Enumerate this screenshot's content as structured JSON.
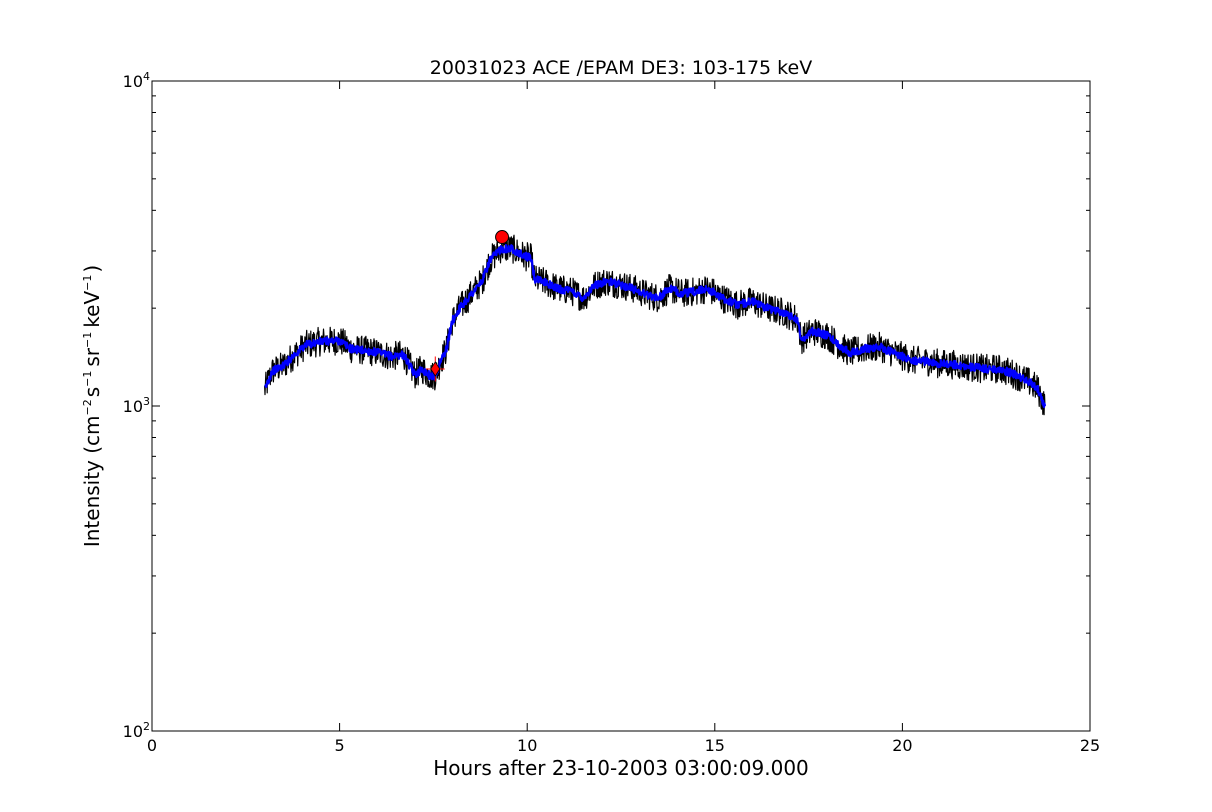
{
  "chart_data": {
    "type": "line",
    "title": "20031023 ACE /EPAM DE3: 103-175 keV",
    "xlabel": "Hours after 23-10-2003 03:00:09.000",
    "ylabel": {
      "prefix": "Intensity (cm",
      "sup1": "−2",
      "part2": "s",
      "sup2": "−1",
      "part3": "sr",
      "sup3": "−1",
      "part4": "keV",
      "sup4": "−1",
      "suffix": ")"
    },
    "xlim": [
      0,
      25
    ],
    "ylim": [
      100,
      10000
    ],
    "yscale": "log",
    "grid": false,
    "x_ticks": [
      {
        "value": 0,
        "label": "0"
      },
      {
        "value": 5,
        "label": "5"
      },
      {
        "value": 10,
        "label": "10"
      },
      {
        "value": 15,
        "label": "15"
      },
      {
        "value": 20,
        "label": "20"
      },
      {
        "value": 25,
        "label": "25"
      }
    ],
    "y_ticks": [
      {
        "value": 100,
        "base": "10",
        "exp": "2"
      },
      {
        "value": 1000,
        "base": "10",
        "exp": "3"
      },
      {
        "value": 10000,
        "base": "10",
        "exp": "4"
      }
    ],
    "series": [
      {
        "color": "#000000",
        "x": [
          3.0,
          3.2,
          3.5,
          3.8,
          4.1,
          4.5,
          5.0,
          5.3,
          5.7,
          6.0,
          6.4,
          6.7,
          7.0,
          7.2,
          7.4,
          7.55,
          7.7,
          7.85,
          8.0,
          8.2,
          8.5,
          8.8,
          9.0,
          9.3,
          9.6,
          9.9,
          10.1,
          10.2,
          10.5,
          10.8,
          11.2,
          11.5,
          11.8,
          12.1,
          12.5,
          12.8,
          13.2,
          13.5,
          13.8,
          14.1,
          14.5,
          14.8,
          15.2,
          15.6,
          16.0,
          16.4,
          16.8,
          17.2,
          17.3,
          17.6,
          18.0,
          18.3,
          18.6,
          19.0,
          19.4,
          19.8,
          20.0,
          20.3,
          20.7,
          21.0,
          21.4,
          21.8,
          22.2,
          22.6,
          23.0,
          23.4,
          23.6,
          23.8
        ],
        "y": [
          1120,
          1280,
          1330,
          1440,
          1540,
          1580,
          1590,
          1500,
          1480,
          1460,
          1420,
          1440,
          1250,
          1300,
          1240,
          1240,
          1380,
          1500,
          1820,
          2000,
          2200,
          2420,
          2800,
          3050,
          3050,
          2900,
          2850,
          2450,
          2400,
          2300,
          2250,
          2150,
          2350,
          2420,
          2360,
          2300,
          2200,
          2150,
          2300,
          2220,
          2250,
          2300,
          2150,
          2050,
          2100,
          2000,
          1950,
          1850,
          1600,
          1700,
          1650,
          1540,
          1460,
          1500,
          1520,
          1450,
          1420,
          1380,
          1370,
          1350,
          1340,
          1320,
          1300,
          1300,
          1250,
          1180,
          1130,
          1000
        ]
      },
      {
        "color": "#0000ff",
        "x": [
          3.0,
          3.2,
          3.5,
          3.8,
          4.1,
          4.5,
          5.0,
          5.3,
          5.7,
          6.0,
          6.4,
          6.7,
          7.0,
          7.2,
          7.4,
          7.55,
          7.7,
          7.85,
          8.0,
          8.2,
          8.5,
          8.8,
          9.0,
          9.3,
          9.6,
          9.9,
          10.1,
          10.2,
          10.5,
          10.8,
          11.2,
          11.5,
          11.8,
          12.1,
          12.5,
          12.8,
          13.2,
          13.5,
          13.8,
          14.1,
          14.5,
          14.8,
          15.2,
          15.6,
          16.0,
          16.4,
          16.8,
          17.2,
          17.3,
          17.6,
          18.0,
          18.3,
          18.6,
          19.0,
          19.4,
          19.8,
          20.0,
          20.3,
          20.7,
          21.0,
          21.4,
          21.8,
          22.2,
          22.6,
          23.0,
          23.4,
          23.6,
          23.8
        ],
        "y": [
          1120,
          1280,
          1330,
          1440,
          1540,
          1580,
          1590,
          1500,
          1480,
          1460,
          1420,
          1440,
          1250,
          1300,
          1240,
          1240,
          1380,
          1500,
          1820,
          2000,
          2200,
          2420,
          2800,
          3050,
          3050,
          2900,
          2850,
          2450,
          2400,
          2300,
          2250,
          2150,
          2350,
          2420,
          2360,
          2300,
          2200,
          2150,
          2300,
          2220,
          2250,
          2300,
          2150,
          2050,
          2100,
          2000,
          1950,
          1850,
          1600,
          1700,
          1650,
          1540,
          1460,
          1500,
          1520,
          1450,
          1420,
          1380,
          1370,
          1350,
          1340,
          1320,
          1300,
          1300,
          1250,
          1180,
          1130,
          1000
        ]
      }
    ],
    "markers": [
      {
        "shape": "circle",
        "x": 9.33,
        "y": 3310,
        "color": "#ff0000"
      },
      {
        "shape": "diamond",
        "x": 7.55,
        "y": 1300,
        "color": "#ff0000"
      }
    ],
    "marker_error_bar": {
      "x": 7.55,
      "y": 1300,
      "xerr": 0.25,
      "yerr_low": 1190,
      "yerr_high": 1420,
      "color": "#ff0000"
    }
  }
}
